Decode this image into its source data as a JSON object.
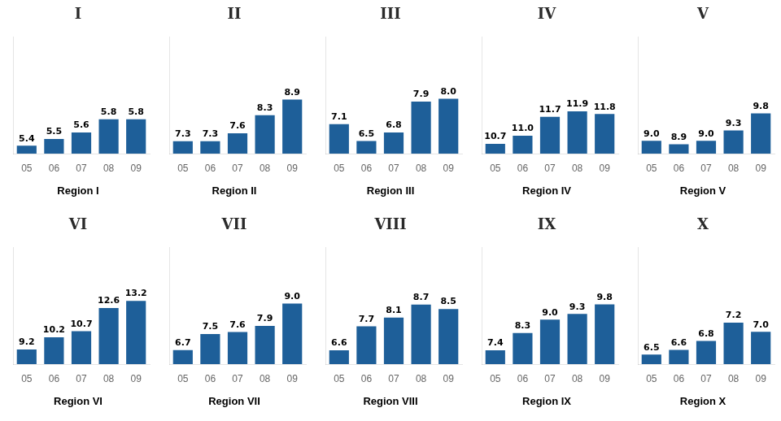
{
  "chart_data": [
    {
      "type": "bar",
      "title": "Region I",
      "annotation": "I",
      "categories": [
        "05",
        "06",
        "07",
        "08",
        "09"
      ],
      "values": [
        5.4,
        5.5,
        5.6,
        5.8,
        5.8
      ],
      "value_labels": [
        "5.4",
        "5.5",
        "5.6",
        "5.8",
        "5.8"
      ],
      "color": "#1e5f99",
      "ylim": [
        5.28,
        7.044
      ],
      "grid": false,
      "data_labels": true,
      "tick_labels": "x"
    },
    {
      "type": "bar",
      "title": "Region II",
      "annotation": "II",
      "categories": [
        "05",
        "06",
        "07",
        "08",
        "09"
      ],
      "values": [
        7.3,
        7.3,
        7.6,
        8.3,
        8.9
      ],
      "value_labels": [
        "7.3",
        "7.3",
        "7.6",
        "8.3",
        "8.9"
      ],
      "color": "#1e5f99",
      "ylim": [
        6.82,
        11.302
      ],
      "grid": false,
      "data_labels": true,
      "tick_labels": "x"
    },
    {
      "type": "bar",
      "title": "Region III",
      "annotation": "III",
      "categories": [
        "05",
        "06",
        "07",
        "08",
        "09"
      ],
      "values": [
        7.1,
        6.5,
        6.8,
        7.9,
        8.0
      ],
      "value_labels": [
        "7.1",
        "6.5",
        "6.8",
        "7.9",
        "8.0"
      ],
      "color": "#1e5f99",
      "ylim": [
        6.05,
        10.19
      ],
      "grid": false,
      "data_labels": true,
      "tick_labels": "x"
    },
    {
      "type": "bar",
      "title": "Region IV",
      "annotation": "IV",
      "categories": [
        "05",
        "06",
        "07",
        "08",
        "09"
      ],
      "values": [
        10.7,
        11.0,
        11.7,
        11.9,
        11.8
      ],
      "value_labels": [
        "10.7",
        "11.0",
        "11.7",
        "11.9",
        "11.8"
      ],
      "color": "#1e5f99",
      "ylim": [
        10.34,
        14.642
      ],
      "grid": false,
      "data_labels": true,
      "tick_labels": "x"
    },
    {
      "type": "bar",
      "title": "Region V",
      "annotation": "V",
      "categories": [
        "05",
        "06",
        "07",
        "08",
        "09"
      ],
      "values": [
        9.0,
        8.9,
        9.0,
        9.3,
        9.8
      ],
      "value_labels": [
        "9.0",
        "8.9",
        "9.0",
        "9.3",
        "9.8"
      ],
      "color": "#1e5f99",
      "ylim": [
        8.63,
        12.014
      ],
      "grid": false,
      "data_labels": true,
      "tick_labels": "x"
    },
    {
      "type": "bar",
      "title": "Region VI",
      "annotation": "VI",
      "categories": [
        "05",
        "06",
        "07",
        "08",
        "09"
      ],
      "values": [
        9.2,
        10.2,
        10.7,
        12.6,
        13.2
      ],
      "value_labels": [
        "9.2",
        "10.2",
        "10.7",
        "12.6",
        "13.2"
      ],
      "color": "#1e5f99",
      "ylim": [
        8.0,
        17.576
      ],
      "grid": false,
      "data_labels": true,
      "tick_labels": "x"
    },
    {
      "type": "bar",
      "title": "Region VII",
      "annotation": "VII",
      "categories": [
        "05",
        "06",
        "07",
        "08",
        "09"
      ],
      "values": [
        6.7,
        7.5,
        7.6,
        7.9,
        9.0
      ],
      "value_labels": [
        "6.7",
        "7.5",
        "7.6",
        "7.9",
        "9.0"
      ],
      "color": "#1e5f99",
      "ylim": [
        6.01,
        11.77
      ],
      "grid": false,
      "data_labels": true,
      "tick_labels": "x"
    },
    {
      "type": "bar",
      "title": "Region VIII",
      "annotation": "VIII",
      "categories": [
        "05",
        "06",
        "07",
        "08",
        "09"
      ],
      "values": [
        6.6,
        7.7,
        8.1,
        8.7,
        8.5
      ],
      "value_labels": [
        "6.6",
        "7.7",
        "8.1",
        "8.7",
        "8.5"
      ],
      "color": "#1e5f99",
      "ylim": [
        5.97,
        11.316
      ],
      "grid": false,
      "data_labels": true,
      "tick_labels": "x"
    },
    {
      "type": "bar",
      "title": "Region IX",
      "annotation": "IX",
      "categories": [
        "05",
        "06",
        "07",
        "08",
        "09"
      ],
      "values": [
        7.4,
        8.3,
        9.0,
        9.3,
        9.8
      ],
      "value_labels": [
        "7.4",
        "8.3",
        "9.0",
        "9.3",
        "9.8"
      ],
      "color": "#1e5f99",
      "ylim": [
        6.68,
        12.764
      ],
      "grid": false,
      "data_labels": true,
      "tick_labels": "x"
    },
    {
      "type": "bar",
      "title": "Region X",
      "annotation": "X",
      "categories": [
        "05",
        "06",
        "07",
        "08",
        "09"
      ],
      "values": [
        6.5,
        6.6,
        6.8,
        7.2,
        7.0
      ],
      "value_labels": [
        "6.5",
        "6.6",
        "6.8",
        "7.2",
        "7.0"
      ],
      "color": "#1e5f99",
      "ylim": [
        6.29,
        8.846
      ],
      "grid": false,
      "data_labels": true,
      "tick_labels": "x"
    }
  ]
}
